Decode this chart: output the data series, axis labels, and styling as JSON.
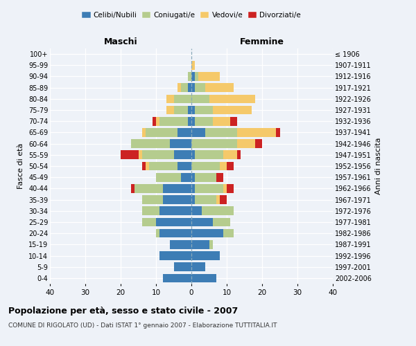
{
  "age_groups": [
    "0-4",
    "5-9",
    "10-14",
    "15-19",
    "20-24",
    "25-29",
    "30-34",
    "35-39",
    "40-44",
    "45-49",
    "50-54",
    "55-59",
    "60-64",
    "65-69",
    "70-74",
    "75-79",
    "80-84",
    "85-89",
    "90-94",
    "95-99",
    "100+"
  ],
  "birth_years": [
    "2002-2006",
    "1997-2001",
    "1992-1996",
    "1987-1991",
    "1982-1986",
    "1977-1981",
    "1972-1976",
    "1967-1971",
    "1962-1966",
    "1957-1961",
    "1952-1956",
    "1947-1951",
    "1942-1946",
    "1937-1941",
    "1932-1936",
    "1927-1931",
    "1922-1926",
    "1917-1921",
    "1912-1916",
    "1907-1911",
    "≤ 1906"
  ],
  "male": {
    "celibi": [
      8,
      5,
      9,
      6,
      9,
      10,
      9,
      8,
      8,
      3,
      4,
      5,
      6,
      4,
      1,
      1,
      0,
      1,
      0,
      0,
      0
    ],
    "coniugati": [
      0,
      0,
      0,
      0,
      1,
      4,
      5,
      6,
      8,
      7,
      8,
      9,
      11,
      9,
      8,
      4,
      5,
      2,
      1,
      0,
      0
    ],
    "vedovi": [
      0,
      0,
      0,
      0,
      0,
      0,
      0,
      0,
      0,
      0,
      1,
      1,
      0,
      1,
      1,
      2,
      2,
      1,
      0,
      0,
      0
    ],
    "divorziati": [
      0,
      0,
      0,
      0,
      0,
      0,
      0,
      0,
      1,
      0,
      1,
      5,
      0,
      0,
      1,
      0,
      0,
      0,
      0,
      0,
      0
    ]
  },
  "female": {
    "nubili": [
      7,
      4,
      8,
      5,
      9,
      6,
      3,
      1,
      1,
      1,
      0,
      1,
      0,
      4,
      1,
      1,
      0,
      1,
      1,
      0,
      0
    ],
    "coniugate": [
      0,
      0,
      0,
      1,
      3,
      5,
      9,
      6,
      8,
      6,
      8,
      8,
      13,
      9,
      5,
      5,
      5,
      3,
      1,
      0,
      0
    ],
    "vedove": [
      0,
      0,
      0,
      0,
      0,
      0,
      0,
      1,
      1,
      0,
      2,
      4,
      5,
      11,
      5,
      11,
      13,
      8,
      6,
      1,
      0
    ],
    "divorziate": [
      0,
      0,
      0,
      0,
      0,
      0,
      0,
      2,
      2,
      2,
      2,
      1,
      2,
      1,
      2,
      0,
      0,
      0,
      0,
      0,
      0
    ]
  },
  "colors": {
    "celibi_nubili": "#3d7db5",
    "coniugati": "#b5cc8e",
    "vedovi": "#f5c96a",
    "divorziati": "#cc2222"
  },
  "xlim": 40,
  "title": "Popolazione per età, sesso e stato civile - 2007",
  "subtitle": "COMUNE DI RIGOLATO (UD) - Dati ISTAT 1° gennaio 2007 - Elaborazione TUTTITALIA.IT",
  "ylabel_left": "Fasce di età",
  "ylabel_right": "Anni di nascita",
  "xlabel_left": "Maschi",
  "xlabel_right": "Femmine",
  "background_color": "#eef2f8",
  "grid_color": "#ffffff"
}
